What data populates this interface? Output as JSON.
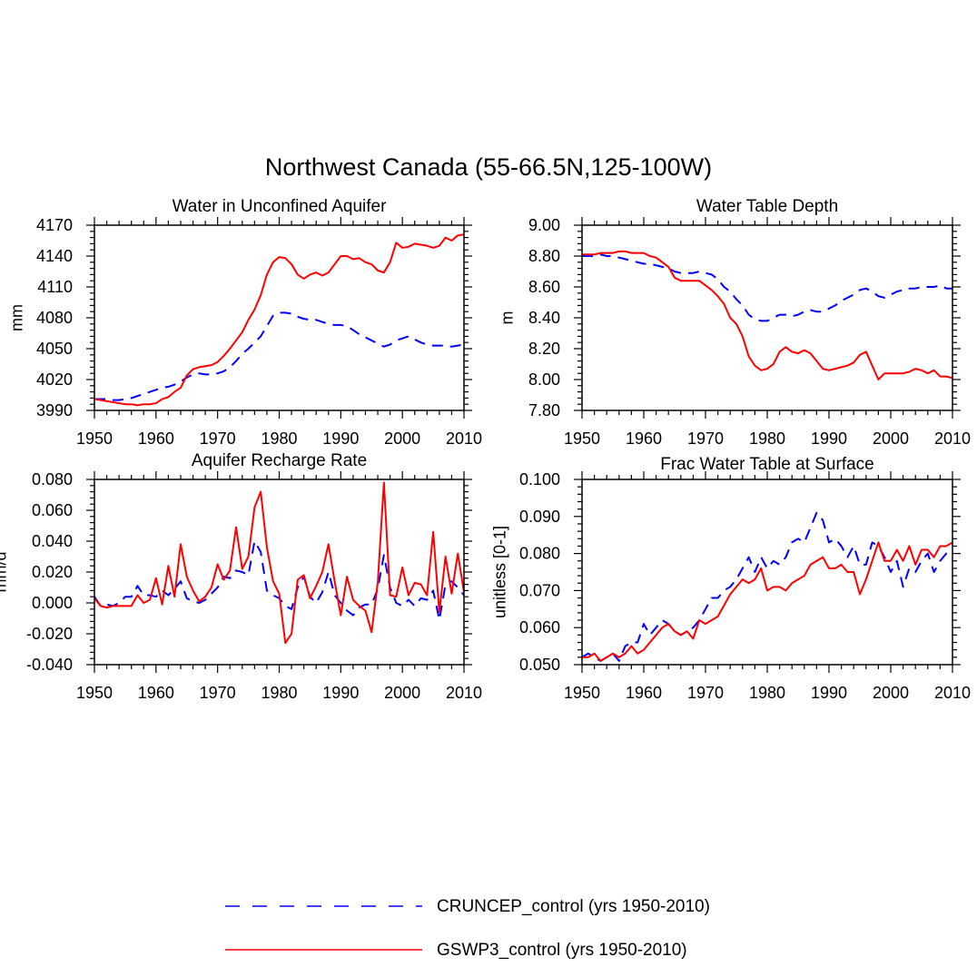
{
  "figure": {
    "title": "Northwest Canada (55-66.5N,125-100W)"
  },
  "colors": {
    "cruncep": "#0000ff",
    "gswp3": "#ff0000",
    "axes": "#000000"
  },
  "legend": {
    "items": [
      {
        "label": "CRUNCEP_control (yrs 1950-2010)",
        "style": "dashed",
        "color": "#0000ff"
      },
      {
        "label": "GSWP3_control (yrs 1950-2010)",
        "style": "solid",
        "color": "#ff0000"
      }
    ]
  },
  "chart_data": [
    {
      "type": "line",
      "title": "Water in Unconfined Aquifer",
      "xlabel": "",
      "ylabel": "mm",
      "xlim": [
        1950,
        2010
      ],
      "ylim": [
        3990,
        4170
      ],
      "xticks": [
        1950,
        1960,
        1970,
        1980,
        1990,
        2000,
        2010
      ],
      "xtick_labels": [
        "1950",
        "1960",
        "1970",
        "1980",
        "1990",
        "2000",
        "2010"
      ],
      "yticks": [
        3990,
        4020,
        4050,
        4080,
        4110,
        4140,
        4170
      ],
      "ytick_labels": [
        "3990",
        "4020",
        "4050",
        "4080",
        "4110",
        "4140",
        "4170"
      ],
      "x": [
        1950,
        1951,
        1952,
        1953,
        1954,
        1955,
        1956,
        1957,
        1958,
        1959,
        1960,
        1961,
        1962,
        1963,
        1964,
        1965,
        1966,
        1967,
        1968,
        1969,
        1970,
        1971,
        1972,
        1973,
        1974,
        1975,
        1976,
        1977,
        1978,
        1979,
        1980,
        1981,
        1982,
        1983,
        1984,
        1985,
        1986,
        1987,
        1988,
        1989,
        1990,
        1991,
        1992,
        1993,
        1994,
        1995,
        1996,
        1997,
        1998,
        1999,
        2000,
        2001,
        2002,
        2003,
        2004,
        2005,
        2006,
        2007,
        2008,
        2009,
        2010
      ],
      "series": [
        {
          "name": "CRUNCEP_control (yrs 1950-2010)",
          "style": "dashed",
          "values": [
            4001,
            4001,
            4001,
            4000,
            4000,
            4001,
            4002,
            4004,
            4006,
            4008,
            4010,
            4012,
            4013,
            4015,
            4018,
            4022,
            4025,
            4026,
            4025,
            4025,
            4026,
            4028,
            4032,
            4038,
            4045,
            4050,
            4056,
            4062,
            4072,
            4082,
            4085,
            4085,
            4084,
            4081,
            4079,
            4078,
            4078,
            4076,
            4074,
            4073,
            4073,
            4072,
            4068,
            4064,
            4061,
            4058,
            4055,
            4052,
            4054,
            4058,
            4060,
            4062,
            4059,
            4056,
            4054,
            4053,
            4053,
            4053,
            4052,
            4053,
            4054
          ]
        },
        {
          "name": "GSWP3_control (yrs 1950-2010)",
          "style": "solid",
          "values": [
            4001,
            4000,
            3999,
            3998,
            3997,
            3996,
            3996,
            3995,
            3996,
            3996,
            3997,
            4001,
            4003,
            4008,
            4012,
            4024,
            4030,
            4032,
            4033,
            4034,
            4037,
            4043,
            4050,
            4058,
            4066,
            4078,
            4088,
            4102,
            4122,
            4134,
            4139,
            4138,
            4132,
            4122,
            4118,
            4122,
            4124,
            4121,
            4124,
            4132,
            4140,
            4140,
            4137,
            4138,
            4134,
            4132,
            4126,
            4124,
            4134,
            4153,
            4148,
            4149,
            4152,
            4151,
            4150,
            4148,
            4150,
            4158,
            4155,
            4160,
            4161
          ]
        }
      ]
    },
    {
      "type": "line",
      "title": "Water Table Depth",
      "xlabel": "",
      "ylabel": "m",
      "xlim": [
        1950,
        2010
      ],
      "ylim": [
        7.8,
        9.0
      ],
      "xticks": [
        1950,
        1960,
        1970,
        1980,
        1990,
        2000,
        2010
      ],
      "xtick_labels": [
        "1950",
        "1960",
        "1970",
        "1980",
        "1990",
        "2000",
        "2010"
      ],
      "yticks": [
        7.8,
        8.0,
        8.2,
        8.4,
        8.6,
        8.8,
        9.0
      ],
      "ytick_labels": [
        "7.80",
        "8.00",
        "8.20",
        "8.40",
        "8.60",
        "8.80",
        "9.00"
      ],
      "x": [
        1950,
        1951,
        1952,
        1953,
        1954,
        1955,
        1956,
        1957,
        1958,
        1959,
        1960,
        1961,
        1962,
        1963,
        1964,
        1965,
        1966,
        1967,
        1968,
        1969,
        1970,
        1971,
        1972,
        1973,
        1974,
        1975,
        1976,
        1977,
        1978,
        1979,
        1980,
        1981,
        1982,
        1983,
        1984,
        1985,
        1986,
        1987,
        1988,
        1989,
        1990,
        1991,
        1992,
        1993,
        1994,
        1995,
        1996,
        1997,
        1998,
        1999,
        2000,
        2001,
        2002,
        2003,
        2004,
        2005,
        2006,
        2007,
        2008,
        2009,
        2010
      ],
      "series": [
        {
          "name": "CRUNCEP_control (yrs 1950-2010)",
          "style": "dashed",
          "values": [
            8.8,
            8.8,
            8.8,
            8.81,
            8.8,
            8.8,
            8.79,
            8.78,
            8.77,
            8.76,
            8.75,
            8.75,
            8.74,
            8.73,
            8.72,
            8.7,
            8.69,
            8.69,
            8.69,
            8.7,
            8.69,
            8.68,
            8.65,
            8.6,
            8.57,
            8.52,
            8.48,
            8.42,
            8.39,
            8.38,
            8.38,
            8.4,
            8.42,
            8.42,
            8.41,
            8.42,
            8.44,
            8.45,
            8.44,
            8.44,
            8.46,
            8.48,
            8.51,
            8.53,
            8.55,
            8.58,
            8.59,
            8.57,
            8.54,
            8.53,
            8.55,
            8.57,
            8.58,
            8.59,
            8.59,
            8.6,
            8.6,
            8.6,
            8.61,
            8.59,
            8.59
          ]
        },
        {
          "name": "GSWP3_control (yrs 1950-2010)",
          "style": "solid",
          "values": [
            8.81,
            8.81,
            8.81,
            8.82,
            8.82,
            8.82,
            8.83,
            8.83,
            8.82,
            8.82,
            8.82,
            8.8,
            8.79,
            8.76,
            8.73,
            8.66,
            8.64,
            8.64,
            8.64,
            8.64,
            8.61,
            8.58,
            8.54,
            8.49,
            8.4,
            8.36,
            8.28,
            8.15,
            8.09,
            8.06,
            8.07,
            8.1,
            8.18,
            8.21,
            8.18,
            8.17,
            8.19,
            8.17,
            8.12,
            8.07,
            8.06,
            8.07,
            8.08,
            8.09,
            8.11,
            8.16,
            8.18,
            8.09,
            8.0,
            8.04,
            8.04,
            8.04,
            8.04,
            8.05,
            8.07,
            8.06,
            8.04,
            8.06,
            8.02,
            8.02,
            8.01
          ]
        }
      ]
    },
    {
      "type": "line",
      "title": "Aquifer Recharge Rate",
      "xlabel": "",
      "ylabel": "mm/d",
      "xlim": [
        1950,
        2010
      ],
      "ylim": [
        -0.04,
        0.08
      ],
      "xticks": [
        1950,
        1960,
        1970,
        1980,
        1990,
        2000,
        2010
      ],
      "xtick_labels": [
        "1950",
        "1960",
        "1970",
        "1980",
        "1990",
        "2000",
        "2010"
      ],
      "yticks": [
        -0.04,
        -0.02,
        0.0,
        0.02,
        0.04,
        0.06,
        0.08
      ],
      "ytick_labels": [
        "-0.040",
        "-0.020",
        "0.000",
        "0.020",
        "0.040",
        "0.060",
        "0.080"
      ],
      "x": [
        1950,
        1951,
        1952,
        1953,
        1954,
        1955,
        1956,
        1957,
        1958,
        1959,
        1960,
        1961,
        1962,
        1963,
        1964,
        1965,
        1966,
        1967,
        1968,
        1969,
        1970,
        1971,
        1972,
        1973,
        1974,
        1975,
        1976,
        1977,
        1978,
        1979,
        1980,
        1981,
        1982,
        1983,
        1984,
        1985,
        1986,
        1987,
        1988,
        1989,
        1990,
        1991,
        1992,
        1993,
        1994,
        1995,
        1996,
        1997,
        1998,
        1999,
        2000,
        2001,
        2002,
        2003,
        2004,
        2005,
        2006,
        2007,
        2008,
        2009,
        2010
      ],
      "series": [
        {
          "name": "CRUNCEP_control (yrs 1950-2010)",
          "style": "dashed",
          "values": [
            0.004,
            -0.002,
            -0.001,
            -0.002,
            0.0,
            0.004,
            0.004,
            0.011,
            0.005,
            0.005,
            0.004,
            0.008,
            0.005,
            0.009,
            0.014,
            0.003,
            0.001,
            0.0,
            0.002,
            0.006,
            0.01,
            0.017,
            0.016,
            0.021,
            0.02,
            0.018,
            0.04,
            0.033,
            0.008,
            0.005,
            0.003,
            -0.002,
            -0.004,
            0.01,
            0.017,
            0.004,
            0.0,
            0.007,
            0.02,
            0.005,
            0.0,
            -0.005,
            -0.008,
            -0.003,
            -0.001,
            -0.001,
            0.009,
            0.031,
            0.01,
            0.0,
            -0.002,
            0.002,
            -0.002,
            0.003,
            0.002,
            0.008,
            -0.011,
            0.012,
            0.014,
            0.01,
            0.005
          ]
        },
        {
          "name": "GSWP3_control (yrs 1950-2010)",
          "style": "solid",
          "values": [
            0.003,
            -0.002,
            -0.003,
            -0.002,
            -0.002,
            -0.002,
            -0.002,
            0.005,
            0.0,
            0.002,
            0.016,
            -0.001,
            0.024,
            0.004,
            0.038,
            0.017,
            0.008,
            0.001,
            0.004,
            0.01,
            0.025,
            0.015,
            0.021,
            0.049,
            0.022,
            0.03,
            0.062,
            0.072,
            0.036,
            0.014,
            0.006,
            -0.026,
            -0.02,
            0.015,
            0.018,
            0.003,
            0.011,
            0.02,
            0.038,
            0.014,
            -0.008,
            0.017,
            0.002,
            -0.002,
            -0.005,
            -0.019,
            0.013,
            0.078,
            0.005,
            0.004,
            0.023,
            0.005,
            0.013,
            0.012,
            0.005,
            0.046,
            -0.006,
            0.03,
            0.006,
            0.032,
            0.007
          ]
        }
      ]
    },
    {
      "type": "line",
      "title": "Frac Water Table at Surface",
      "xlabel": "",
      "ylabel": "unitless [0-1]",
      "xlim": [
        1950,
        2010
      ],
      "ylim": [
        0.05,
        0.1
      ],
      "xticks": [
        1950,
        1960,
        1970,
        1980,
        1990,
        2000,
        2010
      ],
      "xtick_labels": [
        "1950",
        "1960",
        "1970",
        "1980",
        "1990",
        "2000",
        "2010"
      ],
      "yticks": [
        0.05,
        0.06,
        0.07,
        0.08,
        0.09,
        0.1
      ],
      "ytick_labels": [
        "0.050",
        "0.060",
        "0.070",
        "0.080",
        "0.090",
        "0.100"
      ],
      "x": [
        1950,
        1951,
        1952,
        1953,
        1954,
        1955,
        1956,
        1957,
        1958,
        1959,
        1960,
        1961,
        1962,
        1963,
        1964,
        1965,
        1966,
        1967,
        1968,
        1969,
        1970,
        1971,
        1972,
        1973,
        1974,
        1975,
        1976,
        1977,
        1978,
        1979,
        1980,
        1981,
        1982,
        1983,
        1984,
        1985,
        1986,
        1987,
        1988,
        1989,
        1990,
        1991,
        1992,
        1993,
        1994,
        1995,
        1996,
        1997,
        1998,
        1999,
        2000,
        2001,
        2002,
        2003,
        2004,
        2005,
        2006,
        2007,
        2008,
        2009,
        2010
      ],
      "series": [
        {
          "name": "CRUNCEP_control (yrs 1950-2010)",
          "style": "dashed",
          "values": [
            0.052,
            0.053,
            0.052,
            0.051,
            0.052,
            0.053,
            0.051,
            0.055,
            0.056,
            0.056,
            0.061,
            0.058,
            0.06,
            0.062,
            0.061,
            0.059,
            0.058,
            0.059,
            0.06,
            0.062,
            0.065,
            0.068,
            0.068,
            0.07,
            0.071,
            0.073,
            0.076,
            0.079,
            0.075,
            0.079,
            0.076,
            0.078,
            0.077,
            0.079,
            0.083,
            0.084,
            0.083,
            0.087,
            0.091,
            0.089,
            0.083,
            0.084,
            0.082,
            0.079,
            0.082,
            0.077,
            0.077,
            0.083,
            0.082,
            0.079,
            0.075,
            0.078,
            0.071,
            0.076,
            0.075,
            0.078,
            0.08,
            0.075,
            0.078,
            0.08,
            0.081
          ]
        },
        {
          "name": "GSWP3_control (yrs 1950-2010)",
          "style": "solid",
          "values": [
            0.052,
            0.052,
            0.053,
            0.051,
            0.052,
            0.053,
            0.052,
            0.053,
            0.055,
            0.053,
            0.054,
            0.056,
            0.058,
            0.06,
            0.061,
            0.059,
            0.058,
            0.059,
            0.057,
            0.062,
            0.061,
            0.062,
            0.063,
            0.066,
            0.069,
            0.071,
            0.073,
            0.072,
            0.073,
            0.076,
            0.07,
            0.071,
            0.071,
            0.07,
            0.072,
            0.073,
            0.074,
            0.077,
            0.078,
            0.079,
            0.076,
            0.076,
            0.077,
            0.075,
            0.075,
            0.069,
            0.073,
            0.078,
            0.083,
            0.078,
            0.078,
            0.081,
            0.078,
            0.082,
            0.077,
            0.081,
            0.081,
            0.079,
            0.082,
            0.082,
            0.083
          ]
        }
      ]
    }
  ]
}
